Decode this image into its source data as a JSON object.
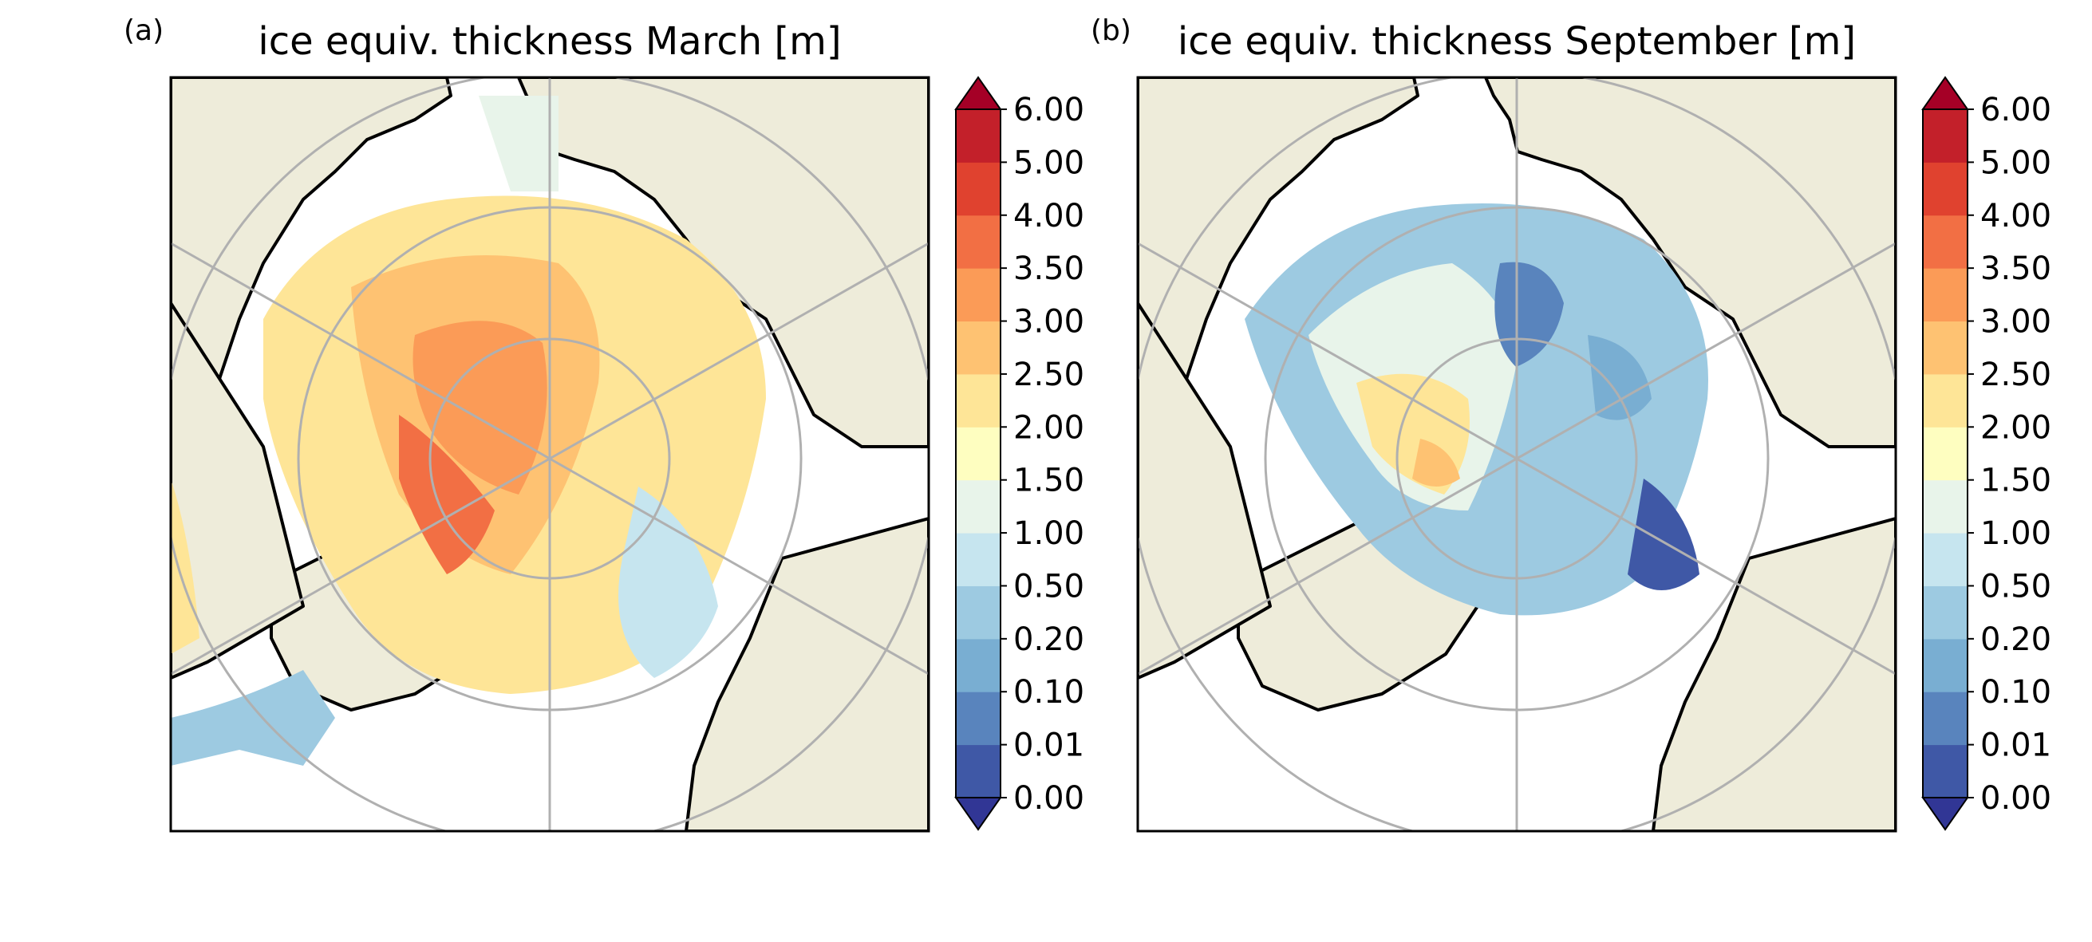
{
  "panels": [
    {
      "label": "(a)",
      "title": "ice equiv. thickness March [m]",
      "month": "March",
      "colors": {
        "land": "#eeecda",
        "ocean": "#ffffff"
      }
    },
    {
      "label": "(b)",
      "title": "ice equiv. thickness September [m]",
      "month": "September",
      "colors": {
        "land": "#eeecda",
        "ocean": "#ffffff"
      }
    }
  ],
  "colorbar": {
    "ticks": [
      "0.00",
      "0.01",
      "0.10",
      "0.20",
      "0.50",
      "1.00",
      "1.50",
      "2.00",
      "2.50",
      "3.00",
      "3.50",
      "4.00",
      "5.00",
      "6.00"
    ],
    "colors": [
      "#3f58a6",
      "#5984bd",
      "#79aed2",
      "#9dcae1",
      "#c6e5ef",
      "#e8f4ea",
      "#fefec0",
      "#fee597",
      "#fec272",
      "#fb9b57",
      "#f26f44",
      "#e0422f",
      "#c3202a"
    ],
    "under_color": "#313695",
    "over_color": "#a50026"
  },
  "chart_data": {
    "type": "heatmap",
    "panels": [
      "ice equiv. thickness March [m]",
      "ice equiv. thickness September [m]"
    ],
    "levels": [
      0.0,
      0.01,
      0.1,
      0.2,
      0.5,
      1.0,
      1.5,
      2.0,
      2.5,
      3.0,
      3.5,
      4.0,
      5.0,
      6.0
    ],
    "colormap": "RdYlBu_r",
    "extend": "both"
  }
}
